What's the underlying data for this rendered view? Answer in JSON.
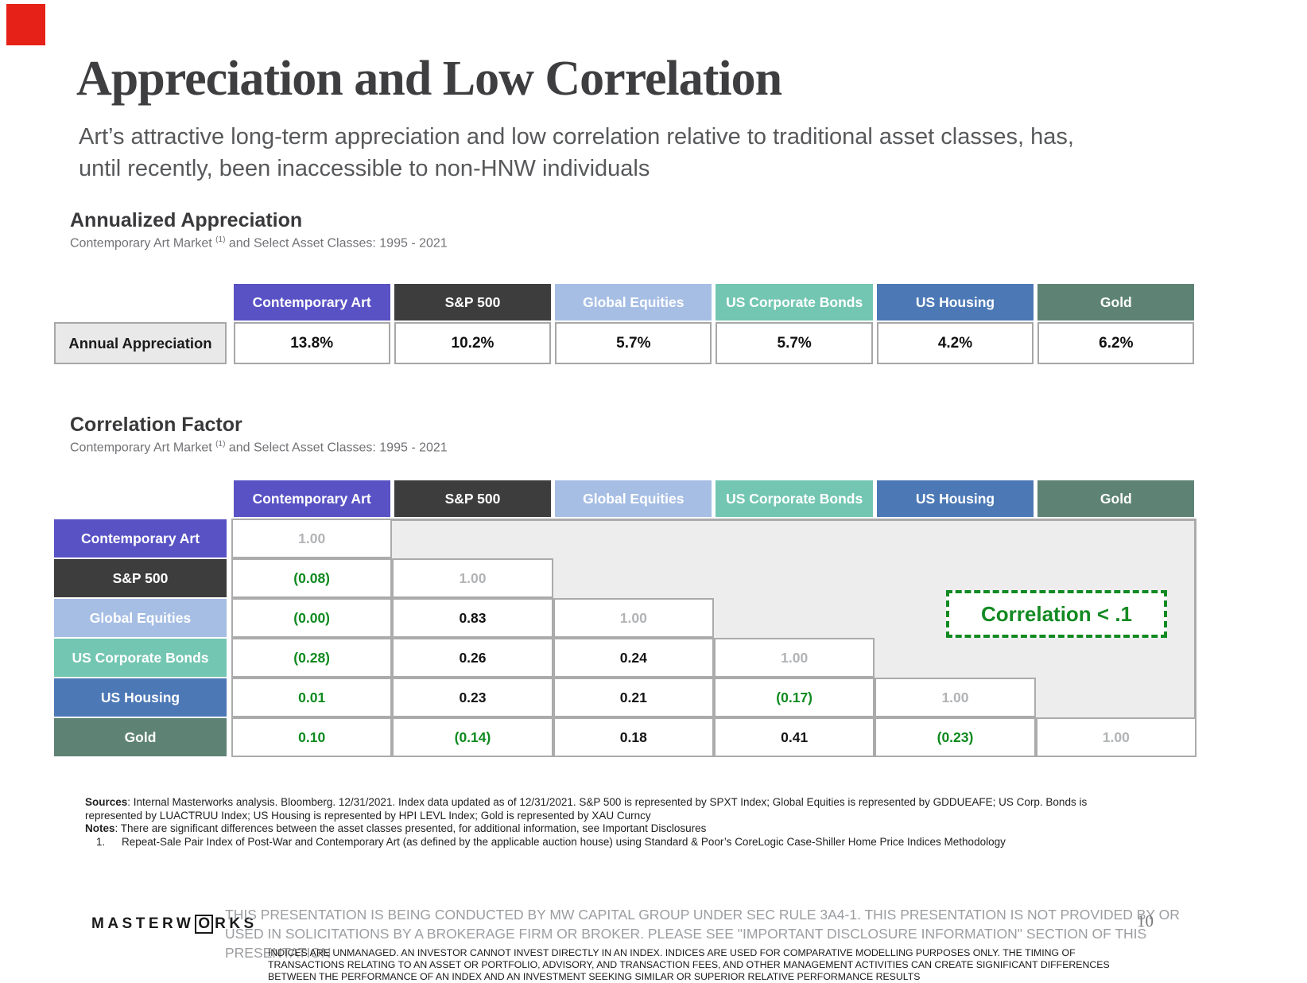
{
  "accent": {
    "color": "#e62117"
  },
  "header": {
    "title": "Appreciation and Low Correlation",
    "subtitle_line1": "Art’s attractive long-term appreciation and low correlation relative to traditional asset classes, has,",
    "subtitle_line2": "until recently, been inaccessible to non-HNW individuals"
  },
  "sections": {
    "appreciation": {
      "heading": "Annualized Appreciation",
      "sub_pre": "Contemporary Art Market ",
      "sub_sup": "(1)",
      "sub_post": " and Select Asset Classes: 1995 - 2021"
    },
    "correlation": {
      "heading": "Correlation Factor",
      "sub_pre": "Contemporary Art Market ",
      "sub_sup": "(1)",
      "sub_post": " and Select Asset Classes: 1995 - 2021"
    }
  },
  "asset_columns": [
    {
      "label": "Contemporary Art",
      "color": "#5952c5"
    },
    {
      "label": "S&P 500",
      "color": "#3d3d3d"
    },
    {
      "label": "Global Equities",
      "color": "#a6bee4"
    },
    {
      "label": "US Corporate Bonds",
      "color": "#73c6b2"
    },
    {
      "label": "US Housing",
      "color": "#4c78b6"
    },
    {
      "label": "Gold",
      "color": "#5e8374"
    }
  ],
  "appreciation_table": {
    "row_label": "Annual Appreciation",
    "values": [
      "13.8%",
      "10.2%",
      "5.7%",
      "5.7%",
      "4.2%",
      "6.2%"
    ]
  },
  "correlation_table": {
    "green_hex": "#0e8a1f",
    "rows": [
      {
        "label": "Contemporary Art",
        "color": "#5952c5",
        "cells": [
          {
            "v": "1.00",
            "s": "d"
          }
        ]
      },
      {
        "label": "S&P 500",
        "color": "#3d3d3d",
        "cells": [
          {
            "v": "(0.08)",
            "s": "g"
          },
          {
            "v": "1.00",
            "s": "d"
          }
        ]
      },
      {
        "label": "Global Equities",
        "color": "#a6bee4",
        "cells": [
          {
            "v": "(0.00)",
            "s": "g"
          },
          {
            "v": "0.83",
            "s": "k"
          },
          {
            "v": "1.00",
            "s": "d"
          }
        ]
      },
      {
        "label": "US Corporate Bonds",
        "color": "#73c6b2",
        "cells": [
          {
            "v": "(0.28)",
            "s": "g"
          },
          {
            "v": "0.26",
            "s": "k"
          },
          {
            "v": "0.24",
            "s": "k"
          },
          {
            "v": "1.00",
            "s": "d"
          }
        ]
      },
      {
        "label": "US Housing",
        "color": "#4c78b6",
        "cells": [
          {
            "v": "0.01",
            "s": "g"
          },
          {
            "v": "0.23",
            "s": "k"
          },
          {
            "v": "0.21",
            "s": "k"
          },
          {
            "v": "(0.17)",
            "s": "g"
          },
          {
            "v": "1.00",
            "s": "d"
          }
        ]
      },
      {
        "label": "Gold",
        "color": "#5e8374",
        "cells": [
          {
            "v": "0.10",
            "s": "g"
          },
          {
            "v": "(0.14)",
            "s": "g"
          },
          {
            "v": "0.18",
            "s": "k"
          },
          {
            "v": "0.41",
            "s": "k"
          },
          {
            "v": "(0.23)",
            "s": "g"
          },
          {
            "v": "1.00",
            "s": "d"
          }
        ]
      }
    ],
    "callout": "Correlation < .1"
  },
  "footnotes": {
    "sources_label": "Sources",
    "sources_text": ": Internal Masterworks analysis. Bloomberg. 12/31/2021. Index data updated as of 12/31/2021. S&P 500 is represented by SPXT Index; Global Equities is represented by GDDUEAFE; US Corp. Bonds is represented by LUACTRUU Index; US Housing is represented by HPI LEVL Index; Gold is represented by XAU Curncy",
    "notes_label": "Notes",
    "notes_text": ": There are significant differences between the asset classes presented, for additional information, see Important Disclosures",
    "note1_num": "1.",
    "note1_text": "Repeat-Sale Pair Index of Post-War and Contemporary Art (as defined by the applicable auction house) using Standard & Poor’s CoreLogic Case-Shiller Home Price Indices Methodology"
  },
  "footer": {
    "brand_pre": "MASTERW",
    "brand_o": "O",
    "brand_post": "RKS",
    "disclaimer": "THIS PRESENTATION  IS BEING CONDUCTED BY MW CAPITAL GROUP UNDER SEC RULE 3A4-1. THIS PRESENTATION  IS NOT PROVIDED BY OR USED IN SOLICITATIONS BY A BROKERAGE FIRM OR BROKER. PLEASE SEE \"IMPORTANT DISCLOSURE INFORMATION\" SECTION OF THIS PRESENTATION",
    "indices_text": "INDICES ARE UNMANAGED. AN INVESTOR CANNOT INVEST DIRECTLY IN AN INDEX. INDICES ARE USED FOR COMPARATIVE MODELLING PURPOSES ONLY. THE TIMING OF TRANSACTIONS RELATING TO AN ASSET OR PORTFOLIO, ADVISORY, AND TRANSACTION FEES, AND OTHER MANAGEMENT ACTIVITIES CAN CREATE SIGNIFICANT DIFFERENCES BETWEEN THE PERFORMANCE OF AN INDEX AND AN INVESTMENT SEEKING SIMILAR OR SUPERIOR RELATIVE PERFORMANCE RESULTS",
    "page_number": "10"
  }
}
